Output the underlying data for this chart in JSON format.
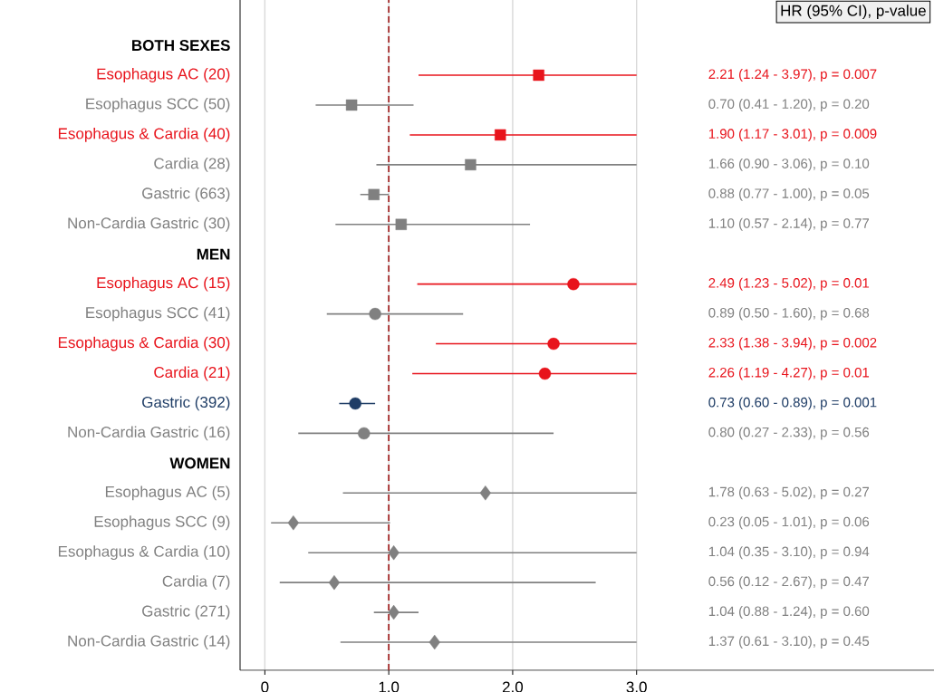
{
  "chart_data": {
    "type": "scatter",
    "orientation": "horizontal",
    "annotations": [
      "HR (95% CI), p-value",
      "2.21 (1.24 - 3.97), p = 0.007",
      "0.70 (0.41 - 1.20), p = 0.20",
      "1.90 (1.17 - 3.01), p = 0.009",
      "1.66 (0.90 - 3.06), p = 0.10",
      "0.88 (0.77 - 1.00), p = 0.05",
      "1.10 (0.57 - 2.14), p = 0.77",
      "2.49 (1.23 - 5.02), p = 0.01",
      "0.89 (0.50 - 1.60), p = 0.68",
      "2.33 (1.38 - 3.94), p = 0.002",
      "2.26 (1.19 - 4.27), p = 0.01",
      "0.73 (0.60 - 0.89), p = 0.001",
      "0.80 (0.27 - 2.33), p = 0.56",
      "1.78 (0.63 - 5.02), p = 0.27",
      "0.23 (0.05 - 1.01), p = 0.06",
      "1.04 (0.35 - 3.10), p = 0.94",
      "0.56 (0.12 - 2.67), p = 0.47",
      "1.04 (0.88 - 1.24), p = 0.60",
      "1.37 (0.61 - 3.10), p = 0.45"
    ],
    "categories": [
      "**BOTH SEXES**",
      "Esophagus AC (20)",
      "Esophagus SCC (50)",
      "Esophagus & Cardia (40)",
      "Cardia (28)",
      "Gastric (663)",
      "Non-Cardia Gastric (30)",
      "**MEN**",
      "Esophagus AC (15)",
      "Esophagus SCC (41)",
      "Esophagus & Cardia (30)",
      "Cardia (21)",
      "Gastric (392)",
      "Non-Cardia Gastric (16)",
      "**WOMEN**",
      "Esophagus AC (5)",
      "Esophagus SCC (9)",
      "Esophagus & Cardia (10)",
      "Cardia (7)",
      "Gastric (271)",
      "Non-Cardia Gastric (14)"
    ],
    "xlim": [
      -0.2,
      5.4
    ],
    "xticks": [
      0,
      {
        "value": 1,
        "label": "1.0"
      },
      {
        "value": 2,
        "label": "2.0"
      },
      {
        "value": 3,
        "label": "3.0"
      }
    ],
    "grid": "x",
    "ref_lines": [
      {
        "axis": "x",
        "value": 1,
        "color": "#a52a2a",
        "line_style": "dashed"
      }
    ],
    "series": [
      {
        "marker": "square",
        "values": [
          null,
          2.21,
          0.7,
          1.9,
          1.66,
          0.88,
          1.1,
          null,
          null,
          null,
          null,
          null,
          null,
          null,
          null,
          null,
          null,
          null,
          null,
          null,
          null
        ],
        "colors": [
          null,
          "#e8141c",
          "#808080",
          "#e8141c",
          "#808080",
          "#808080",
          "#808080",
          null,
          null,
          null,
          null,
          null,
          null,
          null,
          null,
          null,
          null,
          null,
          null,
          null,
          null
        ],
        "errors": [
          null,
          [
            1.24,
            3.0
          ],
          [
            0.41,
            1.2
          ],
          [
            1.17,
            3.0
          ],
          [
            0.9,
            3.0
          ],
          [
            0.77,
            1.0
          ],
          [
            0.57,
            2.14
          ],
          null,
          null,
          null,
          null,
          null,
          null,
          null,
          null,
          null,
          null,
          null,
          null,
          null,
          null
        ]
      },
      {
        "marker": "circle",
        "values": [
          null,
          null,
          null,
          null,
          null,
          null,
          null,
          null,
          2.49,
          0.89,
          2.33,
          2.26,
          0.73,
          0.8,
          null,
          null,
          null,
          null,
          null,
          null,
          null
        ],
        "colors": [
          null,
          null,
          null,
          null,
          null,
          null,
          null,
          null,
          "#e8141c",
          "#808080",
          "#e8141c",
          "#e8141c",
          "#1f3d66",
          "#808080",
          null,
          null,
          null,
          null,
          null,
          null,
          null
        ],
        "errors": [
          null,
          null,
          null,
          null,
          null,
          null,
          null,
          null,
          [
            1.23,
            3.0
          ],
          [
            0.5,
            1.6
          ],
          [
            1.38,
            3.0
          ],
          [
            1.19,
            3.0
          ],
          [
            0.6,
            0.89
          ],
          [
            0.27,
            2.33
          ],
          null,
          null,
          null,
          null,
          null,
          null,
          null
        ]
      },
      {
        "marker": "diamond",
        "color": "#808080",
        "values": [
          null,
          null,
          null,
          null,
          null,
          null,
          null,
          null,
          null,
          null,
          null,
          null,
          null,
          null,
          null,
          1.78,
          0.23,
          1.04,
          0.56,
          1.04,
          1.37
        ],
        "errors": [
          null,
          null,
          null,
          null,
          null,
          null,
          null,
          null,
          null,
          null,
          null,
          null,
          null,
          null,
          null,
          [
            0.63,
            3.0
          ],
          [
            0.05,
            1.01
          ],
          [
            0.35,
            3.0
          ],
          [
            0.12,
            2.67
          ],
          [
            0.88,
            1.24
          ],
          [
            0.61,
            3.0
          ]
        ]
      }
    ]
  }
}
